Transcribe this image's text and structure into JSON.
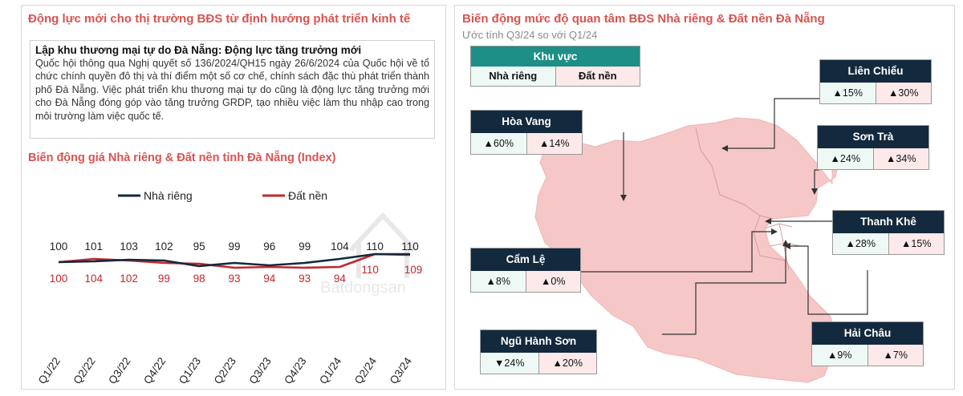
{
  "left": {
    "title": "Động lực mới cho thị trường BĐS từ định hướng phát triển kinh  tế",
    "news": {
      "heading": "Lập khu thương mại tự do Đà Nẵng: Động lực tăng trưởng mới",
      "body": "Quốc hội thông qua Nghị quyết số 136/2024/QH15 ngày 26/6/2024 của Quốc hội về tổ chức chính quyền đô thị và thí điểm một số cơ chế, chính sách đặc thù phát triển thành phố Đà Nẵng. Việc phát triển khu thương mại tự do cũng là động lực tăng trưởng mới cho Đà Nẵng đóng góp vào tăng trưởng GRDP, tạo nhiều việc làm thu nhập cao trong môi trường làm việc quốc tế."
    },
    "chart_title": "Biến động giá Nhà riêng & Đất nền tỉnh Đà Nẵng (Index)",
    "watermark": "Batdongsan"
  },
  "chart_data": {
    "type": "line",
    "categories": [
      "Q1/22",
      "Q2/22",
      "Q3/22",
      "Q4/22",
      "Q1/23",
      "Q2/23",
      "Q3/23",
      "Q4/23",
      "Q1/24",
      "Q2/24",
      "Q3/24"
    ],
    "series": [
      {
        "name": "Nhà riêng",
        "color": "#13293d",
        "values": [
          100,
          101,
          103,
          102,
          95,
          99,
          96,
          99,
          104,
          110,
          110
        ]
      },
      {
        "name": "Đất nền",
        "color": "#c0282d",
        "values": [
          100,
          104,
          102,
          99,
          98,
          93,
          94,
          93,
          94,
          110,
          109
        ]
      }
    ],
    "legend_position": "top",
    "grid": false
  },
  "right": {
    "title": "Biến động mức độ quan tâm BĐS Nhà riêng & Đất nền Đà Nẵng",
    "subtitle": "Ước tính Q3/24 so với Q1/24",
    "legend": {
      "head": "Khu vực",
      "col_a": "Nhà riêng",
      "col_b": "Đất nền"
    },
    "colors": {
      "map_fill": "#f6c7c7",
      "card_head": "#13293d",
      "legend_head": "#1e8f86",
      "cell_a": "#eef9f6",
      "cell_b": "#fde9e9"
    },
    "districts": [
      {
        "name": "Liên Chiểu",
        "a": "15%",
        "a_dir": "up",
        "b": "30%",
        "b_dir": "up"
      },
      {
        "name": "Hòa Vang",
        "a": "60%",
        "a_dir": "up",
        "b": "14%",
        "b_dir": "up"
      },
      {
        "name": "Sơn Trà",
        "a": "24%",
        "a_dir": "up",
        "b": "34%",
        "b_dir": "up"
      },
      {
        "name": "Thanh Khê",
        "a": "28%",
        "a_dir": "up",
        "b": "15%",
        "b_dir": "up"
      },
      {
        "name": "Cẩm Lệ",
        "a": "8%",
        "a_dir": "up",
        "b": "0%",
        "b_dir": "up"
      },
      {
        "name": "Ngũ Hành Sơn",
        "a": "24%",
        "a_dir": "down",
        "b": "20%",
        "b_dir": "up"
      },
      {
        "name": "Hải Châu",
        "a": "9%",
        "a_dir": "up",
        "b": "7%",
        "b_dir": "up"
      }
    ]
  }
}
